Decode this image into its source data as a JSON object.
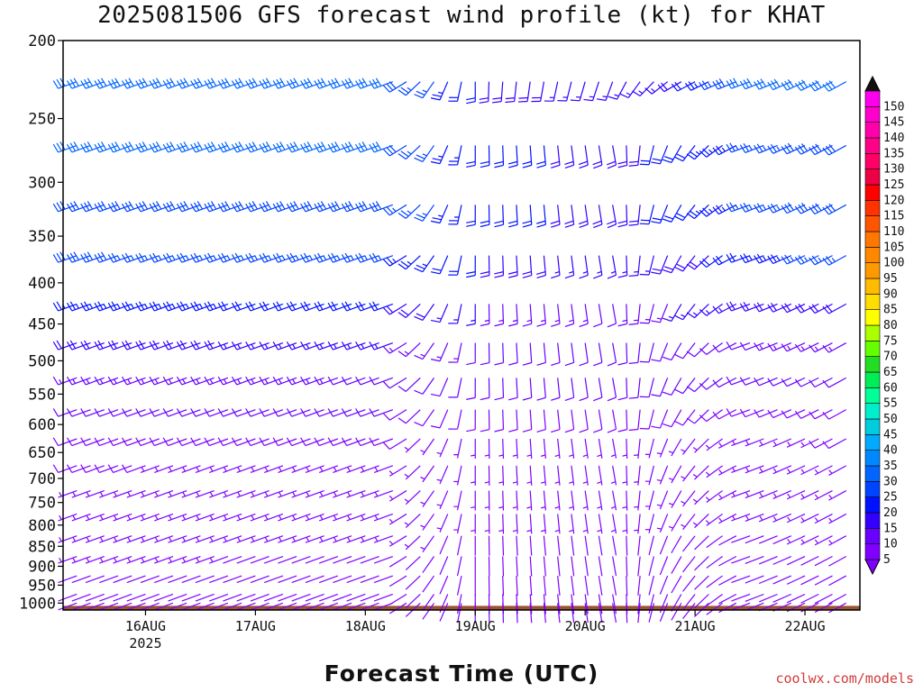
{
  "title": "2025081506 GFS forecast wind profile (kt) for KHAT",
  "xlabel": "Forecast Time (UTC)",
  "credit": "coolwx.com/models",
  "colors": {
    "ground": "#9a5230",
    "text": "#111111",
    "credit": "#d23a3a"
  },
  "chart_data": {
    "type": "wind-barbs",
    "title": "2025081506 GFS forecast wind profile (kt) for KHAT",
    "xlabel": "Forecast Time (UTC)",
    "ylabel": "",
    "y_axis": {
      "scale": "log",
      "ylim": [
        1020,
        200
      ],
      "ticks": [
        200,
        250,
        300,
        350,
        400,
        450,
        500,
        550,
        600,
        650,
        700,
        750,
        800,
        850,
        900,
        950,
        1000
      ],
      "tick_labels": [
        "200",
        "250",
        "300",
        "350",
        "400",
        "450",
        "500",
        "550",
        "600",
        "650",
        "700",
        "750",
        "800",
        "850",
        "900",
        "950",
        "1000"
      ]
    },
    "x_axis": {
      "xlim": [
        0,
        174
      ],
      "ticks": [
        18,
        42,
        66,
        90,
        114,
        138,
        162
      ],
      "tick_labels": [
        "16AUG",
        "17AUG",
        "18AUG",
        "19AUG",
        "20AUG",
        "21AUG",
        "22AUG"
      ],
      "year_label": "2025"
    },
    "colorbar": {
      "unit": "kt",
      "levels": [
        5,
        10,
        15,
        20,
        25,
        30,
        35,
        40,
        45,
        50,
        55,
        60,
        65,
        70,
        75,
        80,
        85,
        90,
        95,
        100,
        105,
        110,
        115,
        120,
        125,
        130,
        135,
        140,
        145,
        150
      ],
      "colors": [
        "#7f00ff",
        "#6a00ff",
        "#3300ff",
        "#0011ff",
        "#0044ff",
        "#0066ff",
        "#0088ff",
        "#00aaff",
        "#00ccdd",
        "#00eecc",
        "#00ff99",
        "#00ee55",
        "#22dd22",
        "#66ff00",
        "#aaff00",
        "#ffff00",
        "#ffdd00",
        "#ffbb00",
        "#ff9900",
        "#ff8800",
        "#ff7700",
        "#ff5500",
        "#ff3300",
        "#ff0000",
        "#ee0044",
        "#ff0066",
        "#ff0088",
        "#ff00aa",
        "#ff00cc",
        "#ff00ee"
      ]
    },
    "time_step_hours": 3,
    "times_hours": [
      0,
      174
    ],
    "levels_hpa": [
      225,
      270,
      320,
      370,
      425,
      475,
      525,
      575,
      625,
      675,
      725,
      775,
      825,
      875,
      925,
      975,
      1000
    ],
    "series": [
      {
        "level": 225,
        "keyframes": [
          [
            0,
            250,
            32
          ],
          [
            72,
            250,
            30
          ],
          [
            90,
            180,
            20
          ],
          [
            120,
            200,
            15
          ],
          [
            135,
            240,
            18
          ],
          [
            150,
            250,
            30
          ],
          [
            174,
            240,
            32
          ]
        ]
      },
      {
        "level": 270,
        "keyframes": [
          [
            0,
            250,
            32
          ],
          [
            72,
            250,
            30
          ],
          [
            90,
            180,
            22
          ],
          [
            120,
            170,
            18
          ],
          [
            150,
            250,
            25
          ],
          [
            174,
            240,
            30
          ]
        ]
      },
      {
        "level": 320,
        "keyframes": [
          [
            0,
            250,
            30
          ],
          [
            72,
            250,
            28
          ],
          [
            90,
            180,
            22
          ],
          [
            120,
            170,
            18
          ],
          [
            150,
            250,
            25
          ],
          [
            174,
            240,
            30
          ]
        ]
      },
      {
        "level": 370,
        "keyframes": [
          [
            0,
            250,
            28
          ],
          [
            72,
            250,
            25
          ],
          [
            90,
            180,
            20
          ],
          [
            120,
            170,
            15
          ],
          [
            150,
            250,
            22
          ],
          [
            174,
            240,
            28
          ]
        ]
      },
      {
        "level": 425,
        "keyframes": [
          [
            0,
            250,
            25
          ],
          [
            72,
            250,
            20
          ],
          [
            90,
            180,
            15
          ],
          [
            120,
            170,
            12
          ],
          [
            150,
            250,
            18
          ],
          [
            174,
            240,
            20
          ]
        ]
      },
      {
        "level": 475,
        "keyframes": [
          [
            0,
            250,
            20
          ],
          [
            72,
            250,
            15
          ],
          [
            90,
            180,
            12
          ],
          [
            120,
            170,
            10
          ],
          [
            150,
            250,
            12
          ],
          [
            174,
            240,
            15
          ]
        ]
      },
      {
        "level": 525,
        "keyframes": [
          [
            0,
            250,
            15
          ],
          [
            72,
            250,
            12
          ],
          [
            90,
            180,
            10
          ],
          [
            120,
            170,
            10
          ],
          [
            150,
            250,
            10
          ],
          [
            174,
            240,
            12
          ]
        ]
      },
      {
        "level": 575,
        "keyframes": [
          [
            0,
            250,
            12
          ],
          [
            72,
            250,
            10
          ],
          [
            90,
            180,
            8
          ],
          [
            120,
            170,
            8
          ],
          [
            150,
            250,
            8
          ],
          [
            174,
            240,
            10
          ]
        ]
      },
      {
        "level": 625,
        "keyframes": [
          [
            0,
            250,
            10
          ],
          [
            72,
            250,
            8
          ],
          [
            90,
            180,
            6
          ],
          [
            120,
            170,
            6
          ],
          [
            150,
            250,
            6
          ],
          [
            174,
            240,
            8
          ]
        ]
      },
      {
        "level": 675,
        "keyframes": [
          [
            0,
            250,
            8
          ],
          [
            72,
            250,
            6
          ],
          [
            90,
            180,
            5
          ],
          [
            120,
            170,
            5
          ],
          [
            150,
            250,
            5
          ],
          [
            174,
            240,
            6
          ]
        ]
      },
      {
        "level": 725,
        "keyframes": [
          [
            0,
            250,
            6
          ],
          [
            72,
            250,
            5
          ],
          [
            90,
            180,
            4
          ],
          [
            120,
            170,
            4
          ],
          [
            150,
            250,
            4
          ],
          [
            174,
            240,
            5
          ]
        ]
      },
      {
        "level": 775,
        "keyframes": [
          [
            0,
            250,
            5
          ],
          [
            72,
            250,
            4
          ],
          [
            90,
            180,
            3
          ],
          [
            120,
            170,
            3
          ],
          [
            150,
            250,
            3
          ],
          [
            174,
            240,
            4
          ]
        ]
      },
      {
        "level": 825,
        "keyframes": [
          [
            0,
            250,
            4
          ],
          [
            72,
            250,
            3
          ],
          [
            90,
            180,
            2
          ],
          [
            120,
            170,
            2
          ],
          [
            150,
            250,
            2
          ],
          [
            174,
            240,
            3
          ]
        ]
      },
      {
        "level": 875,
        "keyframes": [
          [
            0,
            250,
            3
          ],
          [
            72,
            250,
            2
          ],
          [
            90,
            180,
            2
          ],
          [
            120,
            170,
            2
          ],
          [
            150,
            250,
            2
          ],
          [
            174,
            240,
            2
          ]
        ]
      },
      {
        "level": 925,
        "keyframes": [
          [
            0,
            250,
            2
          ],
          [
            72,
            250,
            2
          ],
          [
            90,
            180,
            1
          ],
          [
            120,
            170,
            1
          ],
          [
            150,
            250,
            1
          ],
          [
            174,
            240,
            2
          ]
        ]
      },
      {
        "level": 975,
        "keyframes": [
          [
            0,
            250,
            1
          ],
          [
            72,
            250,
            1
          ],
          [
            90,
            180,
            1
          ],
          [
            120,
            170,
            1
          ],
          [
            150,
            250,
            1
          ],
          [
            174,
            240,
            1
          ]
        ]
      },
      {
        "level": 1000,
        "keyframes": [
          [
            0,
            250,
            1
          ],
          [
            72,
            250,
            1
          ],
          [
            90,
            180,
            1
          ],
          [
            120,
            170,
            1
          ],
          [
            150,
            250,
            1
          ],
          [
            174,
            240,
            1
          ]
        ]
      }
    ]
  }
}
